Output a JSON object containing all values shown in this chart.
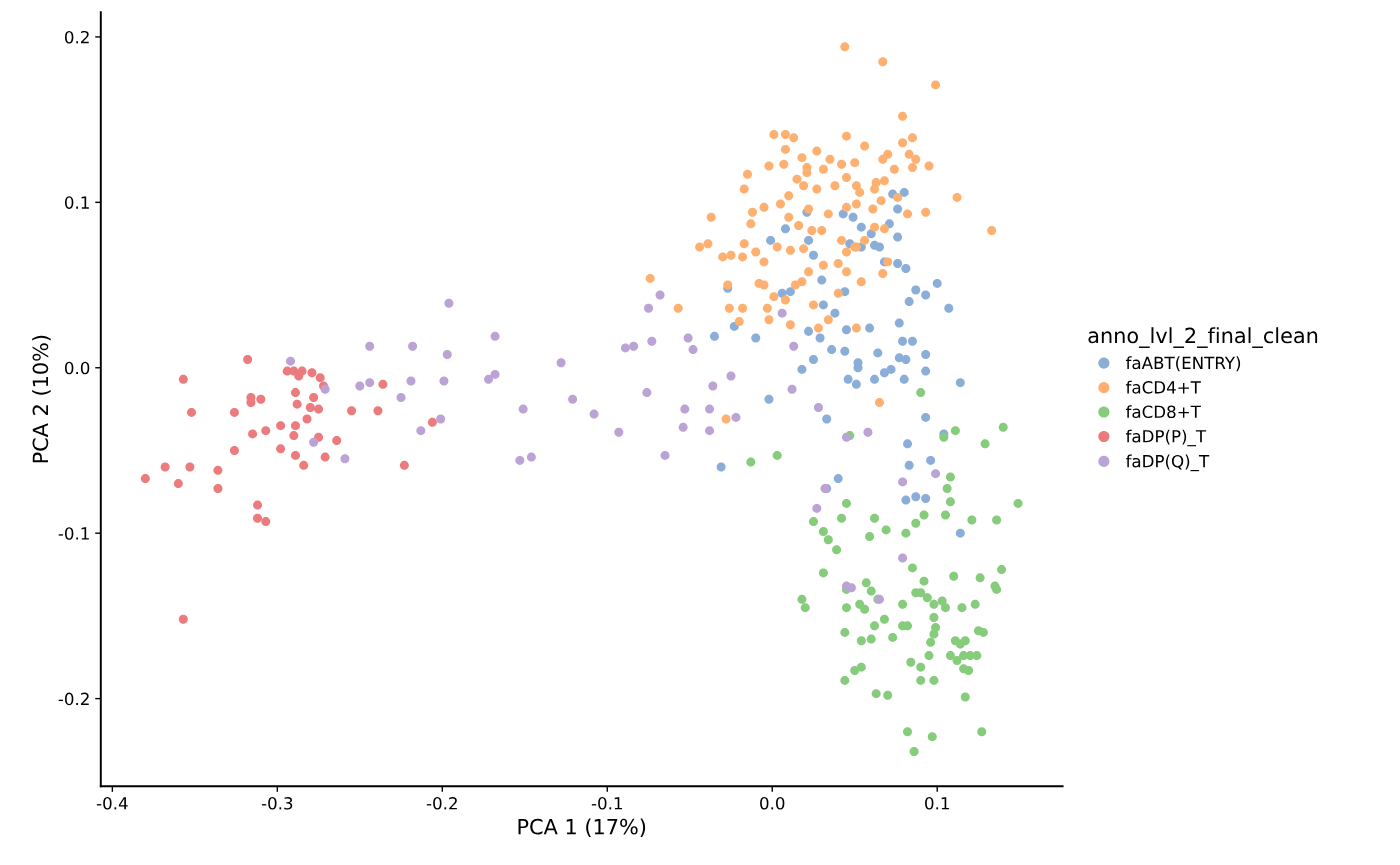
{
  "chart_data": {
    "type": "scatter",
    "xlabel": "PCA 1 (17%)",
    "ylabel": "PCA 2 (10%)",
    "legend_title": "anno_lvl_2_final_clean",
    "legend": "right",
    "grid": false,
    "marker": "circle",
    "xlim": [
      -0.407,
      0.176
    ],
    "ylim": [
      -0.253,
      0.215
    ],
    "xticks": [
      -0.4,
      -0.3,
      -0.2,
      -0.1,
      {
        "value": 0,
        "label": "0.0"
      },
      0.1
    ],
    "yticks": [
      -0.2,
      -0.1,
      {
        "value": 0,
        "label": "0.0"
      },
      0.1,
      0.2
    ],
    "series": [
      {
        "name": "faABT(ENTRY)",
        "color": "#8aaed8",
        "x": [
          -0.027,
          -0.023,
          -0.035,
          -0.01,
          -0.002,
          -0.031,
          -0.001,
          0.008,
          0.021,
          0.022,
          0.025,
          0.006,
          0.011,
          0.022,
          0.029,
          0.031,
          0.038,
          0.044,
          0.047,
          0.043,
          0.049,
          0.054,
          0.06,
          0.071,
          0.062,
          0.045,
          0.044,
          0.046,
          0.051,
          0.059,
          0.064,
          0.065,
          0.068,
          0.073,
          0.08,
          0.076,
          0.076,
          0.076,
          0.081,
          0.083,
          0.087,
          0.093,
          0.1,
          0.107,
          0.077,
          0.079,
          0.085,
          0.077,
          0.081,
          0.093,
          0.093,
          0.08,
          0.114,
          0.104,
          0.093,
          0.114,
          0.096,
          0.083,
          0.082,
          0.093,
          0.087,
          0.081,
          0.04,
          0.033,
          0.033,
          0.052,
          0.062,
          0.068,
          0.072,
          0.036,
          0.025,
          0.018,
          0.03,
          0.054,
          0.052
        ],
        "values": [
          0.048,
          0.025,
          0.019,
          0.018,
          -0.019,
          -0.06,
          0.077,
          0.084,
          0.094,
          0.077,
          0.068,
          0.045,
          0.046,
          0.022,
          0.018,
          0.038,
          0.033,
          0.046,
          0.075,
          0.093,
          0.091,
          0.085,
          0.081,
          0.087,
          0.074,
          0.023,
          0.01,
          -0.007,
          -0.01,
          0.024,
          0.009,
          0.073,
          0.064,
          0.105,
          0.106,
          0.096,
          0.079,
          0.063,
          0.06,
          0.04,
          0.047,
          0.044,
          0.051,
          0.036,
          0.027,
          0.016,
          0.016,
          0.006,
          0.005,
          0.008,
          -0.002,
          -0.007,
          -0.009,
          -0.04,
          -0.03,
          -0.1,
          -0.056,
          -0.059,
          -0.046,
          -0.079,
          -0.078,
          -0.08,
          -0.067,
          -0.073,
          -0.031,
          0.0,
          -0.007,
          -0.003,
          -0.001,
          0.011,
          0.005,
          -0.001,
          0.053,
          0.073,
          0.003
        ]
      },
      {
        "name": "faCD4+T",
        "color": "#fdb06f",
        "x": [
          0.044,
          0.067,
          0.099,
          0.079,
          0.079,
          0.056,
          0.021,
          0.008,
          0.001,
          0.013,
          0.008,
          0.007,
          -0.002,
          0.018,
          0.027,
          0.035,
          0.042,
          0.045,
          0.05,
          0.067,
          0.07,
          0.085,
          0.095,
          0.085,
          0.087,
          0.083,
          0.074,
          0.068,
          0.063,
          0.051,
          0.045,
          0.038,
          0.031,
          0.027,
          0.021,
          0.015,
          0.019,
          0.022,
          -0.015,
          -0.017,
          -0.037,
          -0.039,
          -0.044,
          -0.017,
          -0.03,
          -0.018,
          -0.01,
          -0.025,
          -0.074,
          -0.057,
          -0.027,
          -0.026,
          -0.02,
          -0.018,
          -0.008,
          -0.005,
          -0.003,
          0.001,
          0.008,
          0.014,
          0.018,
          0.022,
          0.025,
          0.034,
          0.04,
          0.045,
          0.031,
          0.04,
          0.045,
          0.051,
          0.056,
          0.062,
          0.068,
          0.082,
          0.07,
          0.067,
          0.054,
          0.05,
          0.042,
          0.03,
          0.019,
          0.011,
          0.003,
          -0.005,
          -0.013,
          -0.012,
          -0.005,
          0.005,
          0.01,
          0.01,
          0.016,
          0.024,
          0.034,
          0.045,
          0.051,
          0.061,
          0.066,
          0.062,
          0.053,
          0.076,
          0.093,
          0.112,
          0.133,
          0.065,
          -0.028,
          0.011,
          -0.002,
          0.028,
          0.051
        ],
        "values": [
          0.194,
          0.185,
          0.171,
          0.152,
          0.136,
          0.134,
          0.121,
          0.141,
          0.141,
          0.139,
          0.132,
          0.123,
          0.122,
          0.127,
          0.131,
          0.126,
          0.123,
          0.14,
          0.124,
          0.126,
          0.129,
          0.139,
          0.122,
          0.121,
          0.126,
          0.129,
          0.12,
          0.113,
          0.112,
          0.11,
          0.115,
          0.11,
          0.12,
          0.108,
          0.118,
          0.114,
          0.11,
          0.096,
          0.117,
          0.108,
          0.091,
          0.075,
          0.073,
          0.075,
          0.067,
          0.067,
          0.07,
          0.068,
          0.054,
          0.036,
          0.05,
          0.036,
          0.028,
          0.036,
          0.051,
          0.05,
          0.036,
          0.043,
          0.041,
          0.05,
          0.052,
          0.058,
          0.038,
          0.029,
          0.045,
          0.058,
          0.062,
          0.063,
          0.07,
          0.073,
          0.077,
          0.085,
          0.084,
          0.093,
          0.064,
          0.057,
          0.052,
          0.073,
          0.077,
          0.083,
          0.072,
          0.071,
          0.073,
          0.064,
          0.087,
          0.094,
          0.097,
          0.099,
          0.104,
          0.091,
          0.086,
          0.083,
          0.093,
          0.097,
          0.099,
          0.096,
          0.101,
          0.108,
          0.106,
          0.103,
          0.094,
          0.103,
          0.083,
          -0.021,
          -0.031,
          0.026,
          0.029,
          0.024,
          0.024
        ]
      },
      {
        "name": "faCD8+T",
        "color": "#86cc7c",
        "x": [
          -0.013,
          0.003,
          0.047,
          0.09,
          0.111,
          0.104,
          0.129,
          0.14,
          0.149,
          0.108,
          0.106,
          0.105,
          0.108,
          0.121,
          0.136,
          0.092,
          0.087,
          0.081,
          0.062,
          0.069,
          0.045,
          0.042,
          0.025,
          0.031,
          0.034,
          0.039,
          0.031,
          0.059,
          0.018,
          0.02,
          0.044,
          0.045,
          0.045,
          0.057,
          0.06,
          0.053,
          0.056,
          0.062,
          0.064,
          0.06,
          0.068,
          0.073,
          0.079,
          0.082,
          0.079,
          0.085,
          0.087,
          0.09,
          0.092,
          0.094,
          0.098,
          0.098,
          0.099,
          0.098,
          0.103,
          0.105,
          0.11,
          0.115,
          0.123,
          0.126,
          0.135,
          0.136,
          0.139,
          0.128,
          0.125,
          0.111,
          0.114,
          0.117,
          0.112,
          0.108,
          0.116,
          0.12,
          0.124,
          0.116,
          0.119,
          0.117,
          0.127,
          0.082,
          0.086,
          0.097,
          0.084,
          0.09,
          0.098,
          0.09,
          0.095,
          0.096,
          0.05,
          0.054,
          0.054,
          0.044,
          0.063,
          0.07
        ],
        "values": [
          -0.057,
          -0.053,
          -0.041,
          -0.015,
          -0.038,
          -0.042,
          -0.046,
          -0.036,
          -0.082,
          -0.066,
          -0.073,
          -0.089,
          -0.081,
          -0.092,
          -0.092,
          -0.089,
          -0.094,
          -0.1,
          -0.091,
          -0.098,
          -0.082,
          -0.091,
          -0.093,
          -0.099,
          -0.104,
          -0.11,
          -0.124,
          -0.102,
          -0.14,
          -0.145,
          -0.16,
          -0.134,
          -0.145,
          -0.13,
          -0.135,
          -0.143,
          -0.146,
          -0.156,
          -0.14,
          -0.164,
          -0.152,
          -0.163,
          -0.156,
          -0.156,
          -0.143,
          -0.121,
          -0.136,
          -0.136,
          -0.129,
          -0.139,
          -0.143,
          -0.151,
          -0.157,
          -0.161,
          -0.141,
          -0.145,
          -0.126,
          -0.145,
          -0.143,
          -0.127,
          -0.132,
          -0.134,
          -0.122,
          -0.16,
          -0.159,
          -0.165,
          -0.167,
          -0.165,
          -0.177,
          -0.174,
          -0.182,
          -0.174,
          -0.174,
          -0.174,
          -0.183,
          -0.199,
          -0.22,
          -0.22,
          -0.232,
          -0.223,
          -0.178,
          -0.181,
          -0.189,
          -0.189,
          -0.174,
          -0.166,
          -0.183,
          -0.181,
          -0.165,
          -0.189,
          -0.197,
          -0.198
        ]
      },
      {
        "name": "faDP(P)_T",
        "color": "#ec7b7d",
        "x": [
          -0.38,
          -0.368,
          -0.36,
          -0.357,
          -0.352,
          -0.353,
          -0.336,
          -0.336,
          -0.357,
          -0.326,
          -0.326,
          -0.318,
          -0.316,
          -0.316,
          -0.315,
          -0.31,
          -0.312,
          -0.312,
          -0.307,
          -0.307,
          -0.298,
          -0.298,
          -0.294,
          -0.29,
          -0.289,
          -0.288,
          -0.29,
          -0.289,
          -0.289,
          -0.287,
          -0.285,
          -0.284,
          -0.282,
          -0.28,
          -0.279,
          -0.278,
          -0.275,
          -0.274,
          -0.275,
          -0.271,
          -0.272,
          -0.264,
          -0.255,
          -0.236,
          -0.239,
          -0.223,
          -0.206
        ],
        "values": [
          -0.067,
          -0.06,
          -0.07,
          -0.007,
          -0.027,
          -0.06,
          -0.062,
          -0.073,
          -0.152,
          -0.027,
          -0.05,
          0.005,
          -0.018,
          -0.021,
          -0.04,
          -0.019,
          -0.083,
          -0.091,
          -0.093,
          -0.038,
          -0.049,
          -0.035,
          -0.002,
          -0.002,
          -0.015,
          -0.022,
          -0.041,
          -0.053,
          -0.035,
          -0.005,
          -0.002,
          -0.059,
          -0.031,
          -0.024,
          -0.003,
          -0.018,
          -0.025,
          -0.006,
          -0.042,
          -0.054,
          -0.011,
          -0.044,
          -0.026,
          -0.01,
          -0.026,
          -0.059,
          -0.033
        ]
      },
      {
        "name": "faDP(Q)_T",
        "color": "#bca3d6",
        "x": [
          -0.292,
          -0.271,
          -0.278,
          -0.259,
          -0.25,
          -0.244,
          -0.244,
          -0.225,
          -0.219,
          -0.218,
          -0.213,
          -0.201,
          -0.199,
          -0.197,
          -0.196,
          -0.172,
          -0.168,
          -0.168,
          -0.151,
          -0.153,
          -0.146,
          -0.128,
          -0.121,
          -0.108,
          -0.093,
          -0.089,
          -0.084,
          -0.076,
          -0.075,
          -0.073,
          -0.068,
          -0.065,
          -0.051,
          -0.048,
          -0.053,
          -0.054,
          -0.038,
          -0.036,
          -0.038,
          -0.025,
          -0.022,
          0.006,
          0.012,
          0.028,
          0.013,
          0.032,
          0.027,
          0.045,
          0.048,
          0.065,
          0.058,
          0.079,
          0.079,
          0.099,
          0.045
        ],
        "values": [
          0.004,
          -0.013,
          -0.045,
          -0.055,
          -0.011,
          -0.009,
          0.013,
          -0.018,
          -0.008,
          0.013,
          -0.038,
          -0.031,
          -0.008,
          0.008,
          0.039,
          -0.007,
          -0.004,
          0.019,
          -0.025,
          -0.056,
          -0.054,
          0.003,
          -0.019,
          -0.028,
          -0.039,
          0.012,
          0.013,
          -0.015,
          0.036,
          0.016,
          0.044,
          -0.053,
          0.018,
          0.011,
          -0.025,
          -0.036,
          -0.025,
          -0.011,
          -0.038,
          -0.005,
          -0.03,
          0.033,
          -0.013,
          -0.024,
          0.013,
          -0.073,
          -0.085,
          -0.132,
          -0.133,
          -0.14,
          -0.039,
          -0.115,
          -0.069,
          -0.064,
          -0.042
        ]
      }
    ]
  }
}
